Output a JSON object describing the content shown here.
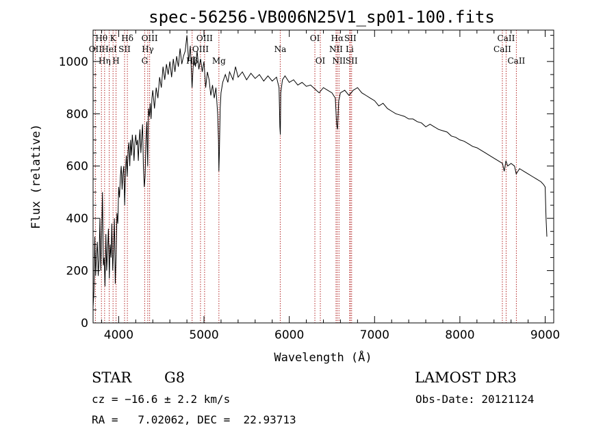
{
  "info": {
    "class_label": "STAR",
    "subclass": "G8",
    "survey": "LAMOST DR3",
    "cz": "cz = −16.6 ± 2.2 km/s",
    "obs_date": "Obs-Date: 20121124",
    "radec": "RA =   7.02062, DEC =  22.93713"
  },
  "chart_data": {
    "type": "line",
    "title": "spec-56256-VB006N25V1_sp01-100.fits",
    "xlabel": "Wavelength (Å)",
    "ylabel": "Flux (relative)",
    "xlim": [
      3700,
      9100
    ],
    "ylim": [
      0,
      1120
    ],
    "xticks": [
      4000,
      5000,
      6000,
      7000,
      8000,
      9000
    ],
    "yticks": [
      0,
      200,
      400,
      600,
      800,
      1000
    ],
    "grid": false,
    "legend": "none",
    "line_color": "#000000",
    "marker_color": "#b22222",
    "series": [
      {
        "points": [
          [
            3700,
            60
          ],
          [
            3710,
            120
          ],
          [
            3720,
            330
          ],
          [
            3730,
            180
          ],
          [
            3740,
            260
          ],
          [
            3750,
            310
          ],
          [
            3760,
            180
          ],
          [
            3770,
            240
          ],
          [
            3780,
            400
          ],
          [
            3790,
            200
          ],
          [
            3800,
            330
          ],
          [
            3810,
            500
          ],
          [
            3820,
            220
          ],
          [
            3830,
            250
          ],
          [
            3840,
            140
          ],
          [
            3850,
            340
          ],
          [
            3860,
            200
          ],
          [
            3870,
            280
          ],
          [
            3880,
            360
          ],
          [
            3890,
            170
          ],
          [
            3900,
            300
          ],
          [
            3910,
            250
          ],
          [
            3920,
            380
          ],
          [
            3930,
            200
          ],
          [
            3940,
            280
          ],
          [
            3950,
            400
          ],
          [
            3960,
            150
          ],
          [
            3970,
            260
          ],
          [
            3980,
            420
          ],
          [
            3990,
            380
          ],
          [
            4000,
            520
          ],
          [
            4010,
            480
          ],
          [
            4020,
            560
          ],
          [
            4030,
            600
          ],
          [
            4040,
            510
          ],
          [
            4050,
            570
          ],
          [
            4060,
            600
          ],
          [
            4070,
            450
          ],
          [
            4080,
            580
          ],
          [
            4090,
            640
          ],
          [
            4100,
            560
          ],
          [
            4110,
            660
          ],
          [
            4120,
            690
          ],
          [
            4130,
            600
          ],
          [
            4140,
            700
          ],
          [
            4150,
            640
          ],
          [
            4160,
            720
          ],
          [
            4170,
            680
          ],
          [
            4180,
            620
          ],
          [
            4190,
            690
          ],
          [
            4200,
            720
          ],
          [
            4210,
            680
          ],
          [
            4220,
            700
          ],
          [
            4230,
            620
          ],
          [
            4240,
            700
          ],
          [
            4250,
            740
          ],
          [
            4260,
            650
          ],
          [
            4270,
            710
          ],
          [
            4280,
            760
          ],
          [
            4290,
            600
          ],
          [
            4300,
            520
          ],
          [
            4310,
            560
          ],
          [
            4320,
            700
          ],
          [
            4330,
            770
          ],
          [
            4340,
            600
          ],
          [
            4350,
            820
          ],
          [
            4360,
            790
          ],
          [
            4370,
            840
          ],
          [
            4380,
            780
          ],
          [
            4390,
            860
          ],
          [
            4400,
            890
          ],
          [
            4420,
            820
          ],
          [
            4440,
            900
          ],
          [
            4460,
            860
          ],
          [
            4480,
            940
          ],
          [
            4500,
            900
          ],
          [
            4520,
            980
          ],
          [
            4540,
            930
          ],
          [
            4560,
            990
          ],
          [
            4580,
            950
          ],
          [
            4600,
            1000
          ],
          [
            4620,
            940
          ],
          [
            4640,
            1010
          ],
          [
            4660,
            960
          ],
          [
            4680,
            1020
          ],
          [
            4700,
            980
          ],
          [
            4720,
            1050
          ],
          [
            4740,
            990
          ],
          [
            4760,
            1020
          ],
          [
            4780,
            1040
          ],
          [
            4800,
            1100
          ],
          [
            4820,
            1000
          ],
          [
            4840,
            1060
          ],
          [
            4860,
            900
          ],
          [
            4870,
            960
          ],
          [
            4880,
            1020
          ],
          [
            4900,
            980
          ],
          [
            4920,
            1040
          ],
          [
            4940,
            970
          ],
          [
            4960,
            1010
          ],
          [
            4980,
            960
          ],
          [
            5000,
            1000
          ],
          [
            5020,
            900
          ],
          [
            5040,
            960
          ],
          [
            5060,
            930
          ],
          [
            5080,
            870
          ],
          [
            5100,
            910
          ],
          [
            5120,
            860
          ],
          [
            5140,
            900
          ],
          [
            5160,
            800
          ],
          [
            5170,
            700
          ],
          [
            5175,
            580
          ],
          [
            5180,
            650
          ],
          [
            5190,
            820
          ],
          [
            5200,
            880
          ],
          [
            5220,
            920
          ],
          [
            5250,
            950
          ],
          [
            5280,
            920
          ],
          [
            5300,
            960
          ],
          [
            5340,
            930
          ],
          [
            5370,
            980
          ],
          [
            5400,
            940
          ],
          [
            5450,
            960
          ],
          [
            5500,
            930
          ],
          [
            5550,
            955
          ],
          [
            5600,
            935
          ],
          [
            5650,
            950
          ],
          [
            5700,
            925
          ],
          [
            5750,
            945
          ],
          [
            5800,
            925
          ],
          [
            5850,
            940
          ],
          [
            5880,
            900
          ],
          [
            5890,
            750
          ],
          [
            5895,
            720
          ],
          [
            5900,
            880
          ],
          [
            5920,
            930
          ],
          [
            5950,
            945
          ],
          [
            6000,
            920
          ],
          [
            6050,
            930
          ],
          [
            6100,
            910
          ],
          [
            6150,
            920
          ],
          [
            6200,
            905
          ],
          [
            6250,
            910
          ],
          [
            6300,
            895
          ],
          [
            6350,
            880
          ],
          [
            6400,
            900
          ],
          [
            6450,
            890
          ],
          [
            6500,
            880
          ],
          [
            6540,
            860
          ],
          [
            6555,
            760
          ],
          [
            6565,
            740
          ],
          [
            6580,
            850
          ],
          [
            6600,
            880
          ],
          [
            6650,
            890
          ],
          [
            6700,
            870
          ],
          [
            6750,
            890
          ],
          [
            6800,
            900
          ],
          [
            6850,
            880
          ],
          [
            6900,
            870
          ],
          [
            6950,
            860
          ],
          [
            7000,
            850
          ],
          [
            7050,
            830
          ],
          [
            7100,
            840
          ],
          [
            7150,
            820
          ],
          [
            7200,
            810
          ],
          [
            7250,
            800
          ],
          [
            7300,
            795
          ],
          [
            7350,
            790
          ],
          [
            7400,
            780
          ],
          [
            7450,
            780
          ],
          [
            7500,
            770
          ],
          [
            7550,
            765
          ],
          [
            7600,
            750
          ],
          [
            7650,
            760
          ],
          [
            7700,
            750
          ],
          [
            7750,
            740
          ],
          [
            7800,
            735
          ],
          [
            7850,
            730
          ],
          [
            7900,
            715
          ],
          [
            7950,
            710
          ],
          [
            8000,
            700
          ],
          [
            8050,
            695
          ],
          [
            8100,
            685
          ],
          [
            8150,
            675
          ],
          [
            8200,
            670
          ],
          [
            8250,
            660
          ],
          [
            8300,
            650
          ],
          [
            8350,
            640
          ],
          [
            8400,
            630
          ],
          [
            8450,
            620
          ],
          [
            8500,
            610
          ],
          [
            8520,
            580
          ],
          [
            8540,
            620
          ],
          [
            8560,
            600
          ],
          [
            8600,
            610
          ],
          [
            8640,
            600
          ],
          [
            8660,
            570
          ],
          [
            8700,
            590
          ],
          [
            8750,
            580
          ],
          [
            8800,
            570
          ],
          [
            8850,
            560
          ],
          [
            8900,
            550
          ],
          [
            8950,
            540
          ],
          [
            8980,
            530
          ],
          [
            9000,
            520
          ],
          [
            9010,
            400
          ],
          [
            9020,
            330
          ]
        ]
      }
    ],
    "lines": [
      {
        "label": "Hθ",
        "x": 3798,
        "row": 0
      },
      {
        "label": "OII",
        "x": 3727,
        "row": 1
      },
      {
        "label": "Hη",
        "x": 3835,
        "row": 2
      },
      {
        "label": "HeI",
        "x": 3889,
        "row": 1
      },
      {
        "label": "K",
        "x": 3934,
        "row": 0
      },
      {
        "label": "SII",
        "x": 4069,
        "row": 1
      },
      {
        "label": "H",
        "x": 3969,
        "row": 2
      },
      {
        "label": "Hδ",
        "x": 4102,
        "row": 0
      },
      {
        "label": "OIII",
        "x": 4363,
        "row": 0
      },
      {
        "label": "Hγ",
        "x": 4341,
        "row": 1
      },
      {
        "label": "G",
        "x": 4305,
        "row": 2
      },
      {
        "label": "OIII",
        "x": 5007,
        "row": 0
      },
      {
        "label": "OIII",
        "x": 4959,
        "row": 1
      },
      {
        "label": "Hβ",
        "x": 4861,
        "row": 2
      },
      {
        "label": "Mg",
        "x": 5175,
        "row": 2
      },
      {
        "label": "Na",
        "x": 5894,
        "row": 1
      },
      {
        "label": "OI",
        "x": 6300,
        "row": 0
      },
      {
        "label": "OI",
        "x": 6364,
        "row": 2
      },
      {
        "label": "Hα",
        "x": 6563,
        "row": 0
      },
      {
        "label": "SII",
        "x": 6716,
        "row": 0
      },
      {
        "label": "NII",
        "x": 6548,
        "row": 1
      },
      {
        "label": "Li",
        "x": 6708,
        "row": 1
      },
      {
        "label": "NII",
        "x": 6583,
        "row": 2
      },
      {
        "label": "SII",
        "x": 6731,
        "row": 2
      },
      {
        "label": "CaII",
        "x": 8542,
        "row": 0
      },
      {
        "label": "CaII",
        "x": 8498,
        "row": 1
      },
      {
        "label": "CaII",
        "x": 8662,
        "row": 2
      }
    ]
  }
}
